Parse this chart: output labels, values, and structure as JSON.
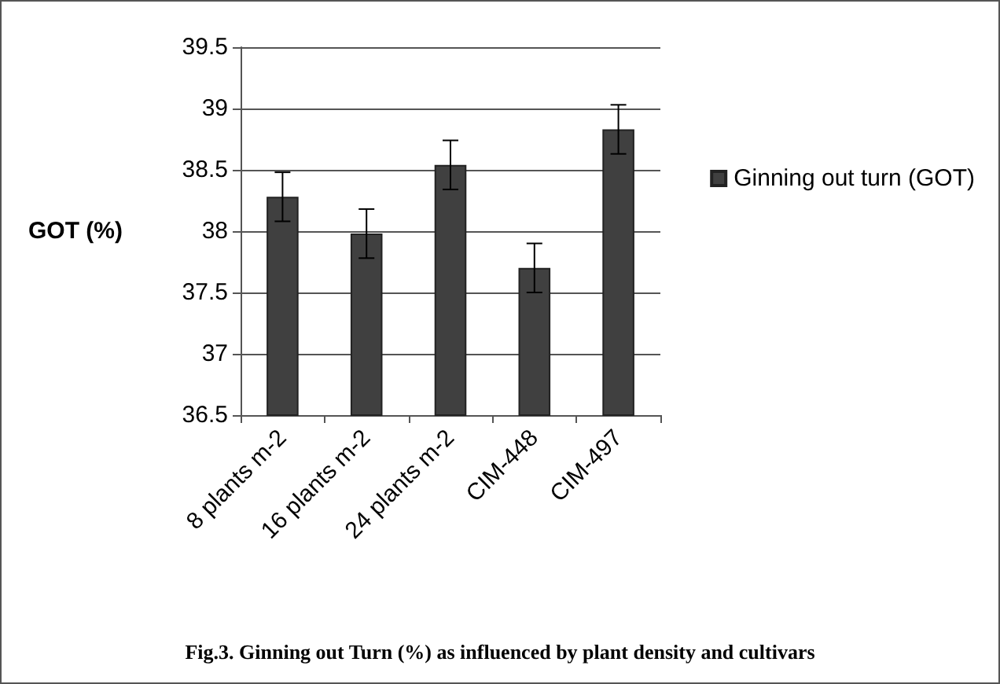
{
  "chart_data": {
    "type": "bar",
    "title": "Fig.3. Ginning out Turn (%) as influenced by plant density and cultivars",
    "ylabel": "GOT (%)",
    "categories": [
      "8 plants m-2",
      "16 plants m-2",
      "24 plants m-2",
      "CIM-448",
      "CIM-497"
    ],
    "series": [
      {
        "name": "Ginning out turn (GOT)",
        "color": "#404040",
        "values": [
          38.28,
          37.98,
          38.54,
          37.7,
          38.83
        ],
        "errors": [
          0.2,
          0.2,
          0.2,
          0.2,
          0.2
        ]
      }
    ],
    "ylim": [
      36.5,
      39.5
    ],
    "yticks": [
      36.5,
      37,
      37.5,
      38,
      38.5,
      39,
      39.5
    ],
    "grid": "y",
    "legend": "right"
  }
}
